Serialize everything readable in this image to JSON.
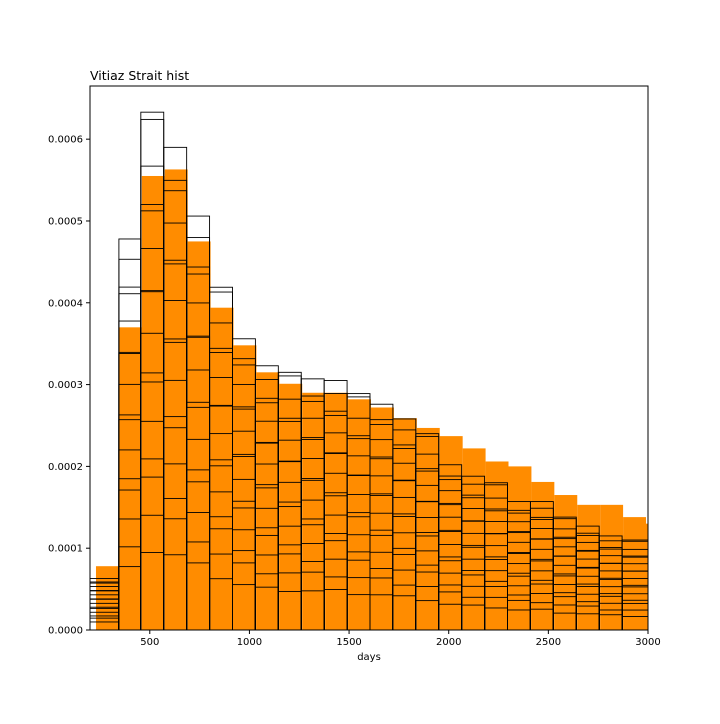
{
  "chart_data": {
    "type": "bar",
    "title": "Vitiaz Strait hist",
    "xlabel": "days",
    "ylabel": "",
    "xlim": [
      200,
      3000
    ],
    "ylim": [
      0,
      0.000665
    ],
    "x_ticks": [
      500,
      1000,
      1500,
      2000,
      2500,
      3000
    ],
    "y_ticks": [
      0.0,
      0.0001,
      0.0002,
      0.0003,
      0.0004,
      0.0005,
      0.0006
    ],
    "y_tick_labels": [
      "0.0000",
      "0.0001",
      "0.0002",
      "0.0003",
      "0.0004",
      "0.0005",
      "0.0006"
    ],
    "colors": {
      "filled": "#ff8c00",
      "outline": "#000000"
    },
    "series": [
      {
        "kind": "filled",
        "bins": [
          [
            230,
            345
          ],
          [
            345,
            460
          ],
          [
            460,
            575
          ],
          [
            575,
            690
          ],
          [
            690,
            805
          ],
          [
            805,
            920
          ],
          [
            920,
            1035
          ],
          [
            1035,
            1150
          ],
          [
            1150,
            1265
          ],
          [
            1265,
            1380
          ],
          [
            1380,
            1495
          ],
          [
            1495,
            1610
          ],
          [
            1610,
            1725
          ],
          [
            1725,
            1840
          ],
          [
            1840,
            1955
          ],
          [
            1955,
            2070
          ],
          [
            2070,
            2185
          ],
          [
            2185,
            2300
          ],
          [
            2300,
            2415
          ],
          [
            2415,
            2530
          ],
          [
            2530,
            2645
          ],
          [
            2645,
            2760
          ],
          [
            2760,
            2875
          ],
          [
            2875,
            2990
          ],
          [
            2990,
            3000
          ]
        ],
        "values": [
          7.8e-05,
          0.00037,
          0.000555,
          0.000563,
          0.000475,
          0.000394,
          0.000348,
          0.000315,
          0.000301,
          0.00029,
          0.00029,
          0.000282,
          0.000272,
          0.000259,
          0.000247,
          0.000237,
          0.000222,
          0.000206,
          0.0002,
          0.000181,
          0.000165,
          0.000153,
          0.000153,
          0.000138,
          0.00013
        ]
      },
      {
        "kind": "outline",
        "bins": [
          [
            200,
            345
          ],
          [
            345,
            455
          ],
          [
            455,
            570
          ],
          [
            570,
            685
          ],
          [
            685,
            800
          ],
          [
            800,
            915
          ],
          [
            915,
            1030
          ],
          [
            1030,
            1145
          ],
          [
            1145,
            1260
          ],
          [
            1260,
            1375
          ],
          [
            1375,
            1490
          ],
          [
            1490,
            1605
          ],
          [
            1605,
            1720
          ],
          [
            1720,
            1835
          ],
          [
            1835,
            1950
          ],
          [
            1950,
            2065
          ],
          [
            2065,
            2180
          ],
          [
            2180,
            2295
          ],
          [
            2295,
            2410
          ],
          [
            2410,
            2525
          ],
          [
            2525,
            2640
          ],
          [
            2640,
            2755
          ],
          [
            2755,
            2870
          ],
          [
            2870,
            3000
          ]
        ],
        "values": [
          6.3e-05,
          0.000478,
          0.000633,
          0.00059,
          0.000506,
          0.000419,
          0.000356,
          0.000323,
          0.000315,
          0.000307,
          0.000305,
          0.000289,
          0.000276,
          0.000258,
          0.00024,
          0.000202,
          0.000188,
          0.00018,
          0.000157,
          0.000157,
          0.000138,
          0.000127,
          0.000115,
          0.00011
        ]
      }
    ]
  }
}
